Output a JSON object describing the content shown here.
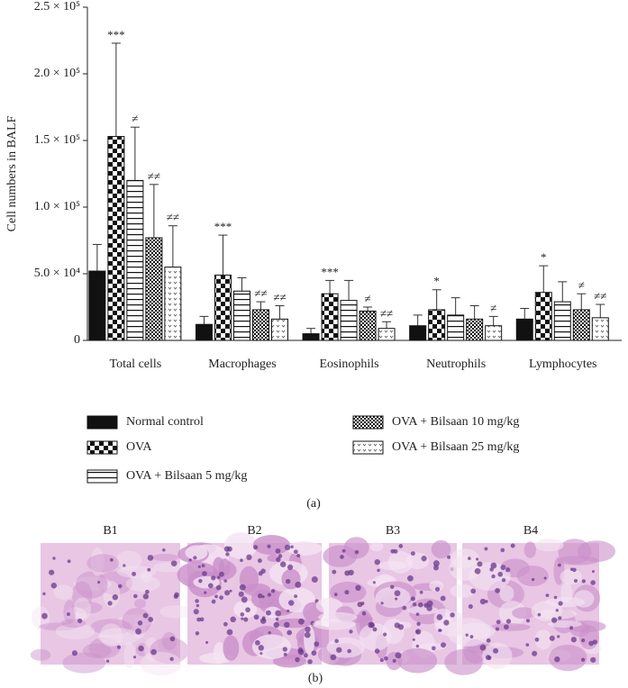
{
  "chart_data": {
    "type": "bar",
    "ylabel": "Cell numbers in BALF",
    "categories": [
      "Total cells",
      "Macrophages",
      "Eosinophils",
      "Neutrophils",
      "Lymphocytes"
    ],
    "ylim": [
      0,
      250000
    ],
    "yticks": [
      0,
      {
        "value": 50000,
        "label": "5.0 × 10⁴"
      },
      {
        "value": 100000,
        "label": "1.0 × 10⁵"
      },
      {
        "value": 150000,
        "label": "1.5 × 10⁵"
      },
      {
        "value": 200000,
        "label": "2.0 × 10⁵"
      },
      {
        "value": 250000,
        "label": "2.5 × 10⁵"
      }
    ],
    "series": [
      {
        "name": "Normal control",
        "color": "#111111",
        "pattern": "solid",
        "values": [
          52000,
          12000,
          5000,
          11000,
          16000
        ],
        "errors": [
          20000,
          6000,
          4000,
          8000,
          8000
        ],
        "annotations": [
          null,
          null,
          null,
          null,
          null
        ]
      },
      {
        "name": "OVA",
        "color": "#111111",
        "pattern": "checker",
        "values": [
          153000,
          49000,
          35000,
          23000,
          36000
        ],
        "errors": [
          70000,
          30000,
          10000,
          15000,
          20000
        ],
        "annotations": [
          "***",
          "***",
          "***",
          "*",
          "*"
        ]
      },
      {
        "name": "OVA + Bilsaan 5 mg/kg",
        "color": "#111111",
        "pattern": "hlines",
        "values": [
          120000,
          37000,
          30000,
          19000,
          29000
        ],
        "errors": [
          40000,
          10000,
          15000,
          13000,
          15000
        ],
        "annotations": [
          "≠",
          null,
          null,
          null,
          null
        ]
      },
      {
        "name": "OVA + Bilsaan 10 mg/kg",
        "color": "#111111",
        "pattern": "crosshatch",
        "values": [
          77000,
          23000,
          22000,
          16000,
          23000
        ],
        "errors": [
          40000,
          6000,
          3000,
          10000,
          12000
        ],
        "annotations": [
          "≠≠",
          "≠≠",
          "≠",
          null,
          "≠"
        ]
      },
      {
        "name": "OVA + Bilsaan 25 mg/kg",
        "color": "#111111",
        "pattern": "dots",
        "values": [
          55000,
          16000,
          9000,
          11000,
          17000
        ],
        "errors": [
          31000,
          10000,
          5000,
          7000,
          10000
        ],
        "annotations": [
          "≠≠",
          "≠≠",
          "≠≠",
          "≠",
          "≠≠"
        ]
      }
    ],
    "caption": "(a)"
  },
  "micrographs": {
    "labels": [
      "B1",
      "B2",
      "B3",
      "B4"
    ],
    "caption": "(b)"
  }
}
